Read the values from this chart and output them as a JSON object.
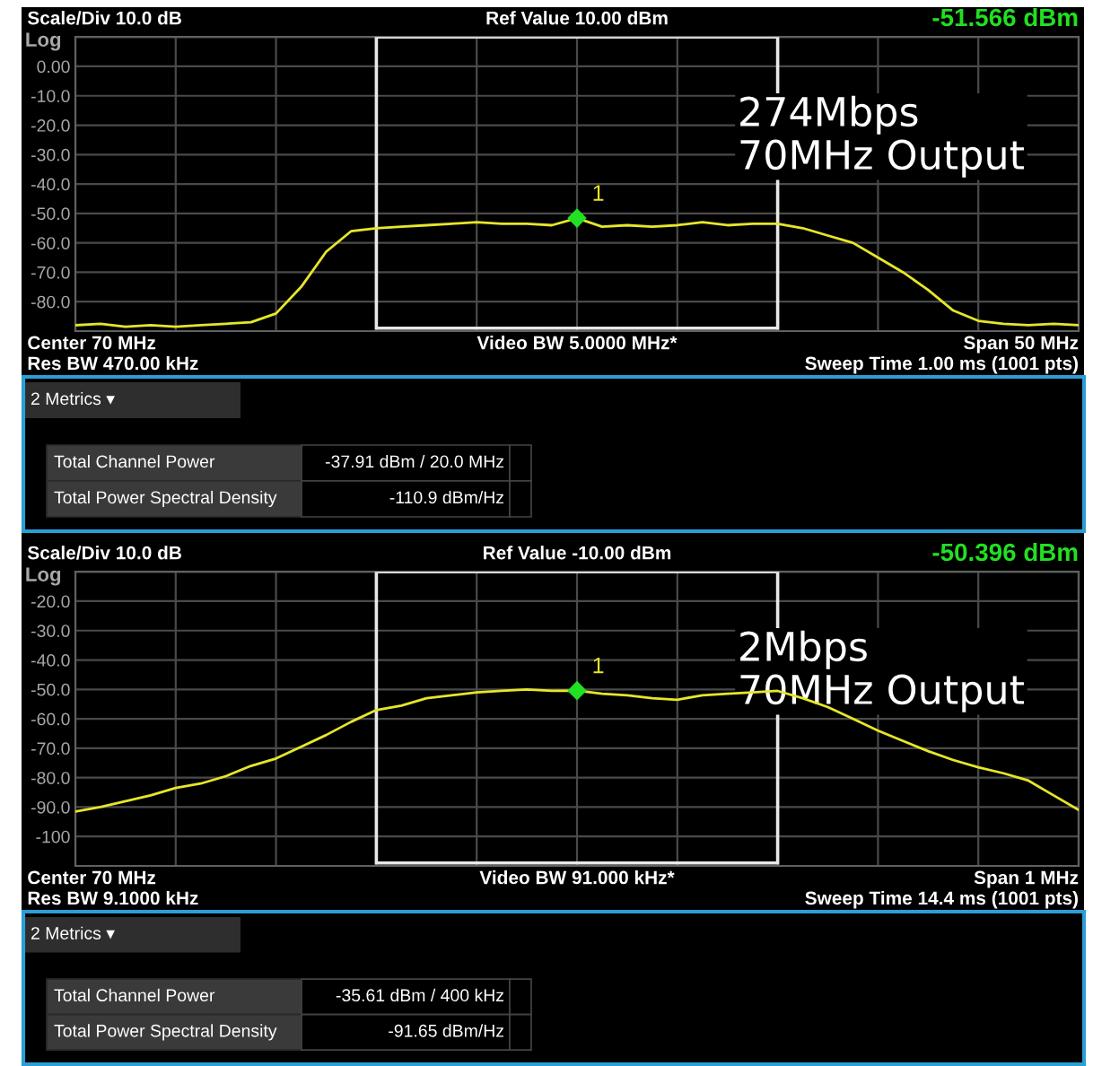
{
  "chart_data": [
    {
      "type": "line",
      "title": "Ref Value 10.00 dBm",
      "ylabel": "Log",
      "categories": [
        null,
        null,
        null,
        null,
        null,
        null,
        null,
        null,
        null,
        null,
        null,
        null,
        null,
        null,
        null,
        null,
        null,
        null,
        null,
        null,
        null,
        null,
        null,
        null,
        null,
        null,
        null,
        null,
        null,
        null,
        null,
        null,
        null,
        null,
        null,
        null,
        null,
        null,
        null,
        null,
        null
      ],
      "ylim": [
        -90,
        10
      ],
      "yticks": [
        {
          "value": 10,
          "label": null
        },
        {
          "value": 0,
          "label": "0.00"
        },
        {
          "value": -10,
          "label": "-10.0"
        },
        {
          "value": -20,
          "label": "-20.0"
        },
        {
          "value": -30,
          "label": "-30.0"
        },
        {
          "value": -40,
          "label": "-40.0"
        },
        {
          "value": -50,
          "label": "-50.0"
        },
        {
          "value": -60,
          "label": "-60.0"
        },
        {
          "value": -70,
          "label": "-70.0"
        },
        {
          "value": -80,
          "label": "-80.0"
        },
        {
          "value": -90,
          "label": null
        }
      ],
      "grid": true,
      "tick_labels": "y",
      "annotations": [
        "Scale/Div 10.0 dB",
        "-51.566 dBm",
        "274Mbps\n70MHz Output",
        "Center 70 MHz",
        "Video BW 5.0000 MHz*",
        "Span 50 MHz",
        "Res BW 470.00 kHz",
        "Sweep Time 1.00 ms (1001 pts)",
        "1"
      ],
      "series": [
        {
          "color": "#e6e62a",
          "values": [
            -88,
            -87.5,
            -88.5,
            -88,
            -88.5,
            -88,
            -87.5,
            -87,
            -84,
            -75,
            -63,
            -56,
            -55,
            -54.5,
            -54,
            -53.5,
            -53,
            -53.5,
            -53.5,
            -54,
            -51.6,
            -54.5,
            -54,
            -54.5,
            -54,
            -53,
            -54,
            -53.5,
            -53.5,
            -55,
            -57.5,
            -60,
            -65,
            -70,
            -76,
            -83,
            -86.5,
            -87.5,
            -88,
            -87.5,
            -88
          ]
        },
        {
          "type": "scatter",
          "color": "#22e022",
          "marker": "diamond",
          "values": [
            null,
            null,
            null,
            null,
            null,
            null,
            null,
            null,
            null,
            null,
            null,
            null,
            null,
            null,
            null,
            null,
            null,
            null,
            null,
            null,
            -51.6,
            null,
            null,
            null,
            null,
            null,
            null,
            null,
            null,
            null,
            null,
            null,
            null,
            null,
            null,
            null,
            null,
            null,
            null,
            null,
            null
          ]
        }
      ]
    },
    {
      "type": "other",
      "annotations": [
        "2 Metrics ▾",
        "Total Channel Power",
        "-37.91 dBm / 20.0 MHz",
        "Total Power Spectral Density",
        "-110.9 dBm/Hz"
      ]
    },
    {
      "type": "line",
      "title": "Ref Value -10.00 dBm",
      "ylabel": "Log",
      "categories": [
        null,
        null,
        null,
        null,
        null,
        null,
        null,
        null,
        null,
        null,
        null,
        null,
        null,
        null,
        null,
        null,
        null,
        null,
        null,
        null,
        null,
        null,
        null,
        null,
        null,
        null,
        null,
        null,
        null,
        null,
        null,
        null,
        null,
        null,
        null,
        null,
        null,
        null,
        null,
        null,
        null
      ],
      "ylim": [
        -110,
        -10
      ],
      "yticks": [
        {
          "value": -10,
          "label": null
        },
        {
          "value": -20,
          "label": "-20.0"
        },
        {
          "value": -30,
          "label": "-30.0"
        },
        {
          "value": -40,
          "label": "-40.0"
        },
        {
          "value": -50,
          "label": "-50.0"
        },
        {
          "value": -60,
          "label": "-60.0"
        },
        {
          "value": -70,
          "label": "-70.0"
        },
        {
          "value": -80,
          "label": "-80.0"
        },
        {
          "value": -90,
          "label": "-90.0"
        },
        -100,
        {
          "value": -110,
          "label": null
        }
      ],
      "grid": true,
      "tick_labels": "y",
      "annotations": [
        "Scale/Div 10.0 dB",
        "-50.396 dBm",
        "2Mbps\n70MHz Output",
        "Center 70 MHz",
        "Video BW 91.000 kHz*",
        "Span 1 MHz",
        "Res BW 9.1000 kHz",
        "Sweep Time 14.4 ms (1001 pts)",
        "1"
      ],
      "series": [
        {
          "color": "#e6e62a",
          "values": [
            -91.5,
            -90,
            -88,
            -86,
            -83.5,
            -82,
            -79.5,
            -76,
            -73.5,
            -69.5,
            -65.5,
            -61,
            -57,
            -55.5,
            -53,
            -52,
            -51,
            -50.5,
            -50,
            -50.5,
            -50.4,
            -51.5,
            -52,
            -53,
            -53.5,
            -52,
            -51.5,
            -51,
            -50.5,
            -53,
            -56,
            -60,
            -64,
            -67.5,
            -71,
            -74,
            -76.5,
            -78.5,
            -81,
            -86,
            -91
          ]
        },
        {
          "type": "scatter",
          "color": "#22e022",
          "marker": "diamond",
          "values": [
            null,
            null,
            null,
            null,
            null,
            null,
            null,
            null,
            null,
            null,
            null,
            null,
            null,
            null,
            null,
            null,
            null,
            null,
            null,
            null,
            -50.4,
            null,
            null,
            null,
            null,
            null,
            null,
            null,
            null,
            null,
            null,
            null,
            null,
            null,
            null,
            null,
            null,
            null,
            null,
            null,
            null
          ]
        }
      ]
    },
    {
      "type": "other",
      "annotations": [
        "2 Metrics ▾",
        "Total Channel Power",
        "-35.61 dBm / 400 kHz",
        "Total Power Spectral Density",
        "-91.65 dBm/Hz"
      ]
    }
  ]
}
